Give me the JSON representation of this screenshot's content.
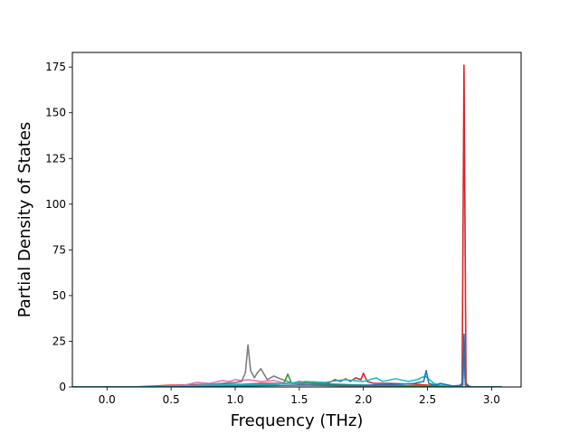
{
  "chart_data": {
    "type": "line",
    "title": "",
    "xlabel": "Frequency (THz)",
    "ylabel": "Partial Density of States",
    "xlim": [
      -0.27,
      3.23
    ],
    "ylim": [
      0,
      183
    ],
    "xticks": [
      0.0,
      0.5,
      1.0,
      1.5,
      2.0,
      2.5,
      3.0
    ],
    "xtick_labels": [
      "0.0",
      "0.5",
      "1.0",
      "1.5",
      "2.0",
      "2.5",
      "3.0"
    ],
    "yticks": [
      0,
      25,
      50,
      75,
      100,
      125,
      150,
      175
    ],
    "ytick_labels": [
      "0",
      "25",
      "50",
      "75",
      "100",
      "125",
      "150",
      "175"
    ],
    "grid": false,
    "legend": "none",
    "series": [
      {
        "color": "#d62728",
        "x": [
          -0.27,
          0.2,
          0.5,
          0.8,
          1.05,
          1.2,
          1.4,
          1.6,
          1.72,
          1.78,
          1.82,
          1.86,
          1.9,
          1.94,
          1.98,
          2.0,
          2.03,
          2.08,
          2.2,
          2.4,
          2.6,
          2.74,
          2.77,
          2.785,
          2.8,
          2.83,
          3.08
        ],
        "y": [
          0,
          0,
          1,
          1.5,
          1.5,
          2,
          2,
          2.5,
          2,
          4,
          3,
          4.5,
          3,
          5,
          4,
          7.5,
          3,
          2,
          2,
          1.5,
          0.5,
          0,
          2,
          176,
          2,
          0,
          0
        ]
      },
      {
        "color": "#e377c2",
        "x": [
          -0.27,
          0.3,
          0.6,
          0.7,
          0.8,
          0.9,
          0.95,
          1.0,
          1.05,
          1.1,
          1.2,
          1.3,
          1.4,
          1.6,
          1.8,
          2.0,
          2.5,
          2.78,
          3.08
        ],
        "y": [
          0,
          0,
          1,
          2.5,
          2,
          3.5,
          3,
          4,
          3.5,
          4,
          3,
          3.5,
          2,
          1.5,
          1,
          0.5,
          0.5,
          0,
          0
        ]
      },
      {
        "color": "#7f7f7f",
        "x": [
          -0.27,
          0.3,
          0.7,
          0.9,
          1.0,
          1.05,
          1.08,
          1.1,
          1.12,
          1.15,
          1.17,
          1.2,
          1.25,
          1.3,
          1.35,
          1.45,
          1.6,
          1.9,
          2.2,
          2.78,
          3.08
        ],
        "y": [
          0,
          0,
          1,
          2,
          2.5,
          3,
          8,
          23,
          9,
          5,
          7.5,
          10,
          4,
          6,
          4.5,
          2,
          1,
          0.5,
          0.5,
          0,
          0
        ]
      },
      {
        "color": "#2ca02c",
        "x": [
          -0.27,
          0.5,
          1.0,
          1.3,
          1.38,
          1.41,
          1.44,
          1.5,
          1.6,
          2.0,
          2.5,
          2.78,
          3.08
        ],
        "y": [
          0,
          0,
          0.5,
          1.5,
          2,
          7,
          2,
          3,
          2,
          1,
          0.5,
          0,
          0
        ]
      },
      {
        "color": "#17becf",
        "x": [
          -0.27,
          0.2,
          0.8,
          1.2,
          1.4,
          1.55,
          1.7,
          1.85,
          2.0,
          2.1,
          2.15,
          2.25,
          2.35,
          2.42,
          2.48,
          2.55,
          2.6,
          2.7,
          2.775,
          2.785,
          2.795,
          2.85,
          3.08
        ],
        "y": [
          0,
          0,
          1,
          1.5,
          2,
          3,
          2.5,
          4,
          3,
          5,
          3,
          4.5,
          3,
          4,
          6,
          2,
          1,
          0.5,
          1,
          18,
          1,
          0,
          0
        ]
      },
      {
        "color": "#1f77b4",
        "x": [
          -0.27,
          0.5,
          1.0,
          1.5,
          2.0,
          2.3,
          2.4,
          2.47,
          2.49,
          2.51,
          2.56,
          2.6,
          2.7,
          2.775,
          2.785,
          2.795,
          2.85,
          3.08
        ],
        "y": [
          0,
          0,
          0.5,
          1,
          1,
          1.5,
          2,
          3,
          9,
          2,
          1,
          2,
          0.5,
          1,
          29,
          1,
          0,
          0
        ]
      }
    ]
  }
}
